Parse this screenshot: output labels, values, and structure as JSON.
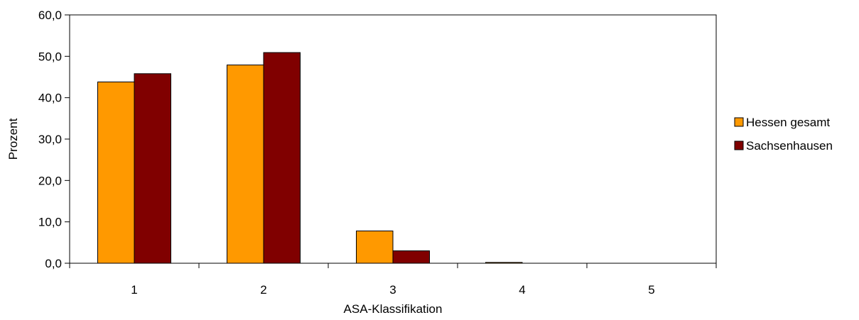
{
  "chart_data": {
    "type": "bar",
    "categories": [
      "1",
      "2",
      "3",
      "4",
      "5"
    ],
    "series": [
      {
        "name": "Hessen gesamt",
        "values": [
          43.8,
          47.9,
          7.8,
          0.2,
          0.0
        ],
        "color": "#FF9900"
      },
      {
        "name": "Sachsenhausen",
        "values": [
          45.8,
          50.9,
          3.0,
          0.0,
          0.0
        ],
        "color": "#800000"
      }
    ],
    "xlabel": "ASA-Klassifikation",
    "ylabel": "Prozent",
    "ylim": [
      0,
      60
    ],
    "yticks": [
      "0,0",
      "10,0",
      "20,0",
      "30,0",
      "40,0",
      "50,0",
      "60,0"
    ],
    "grid": false,
    "legend_position": "right"
  }
}
